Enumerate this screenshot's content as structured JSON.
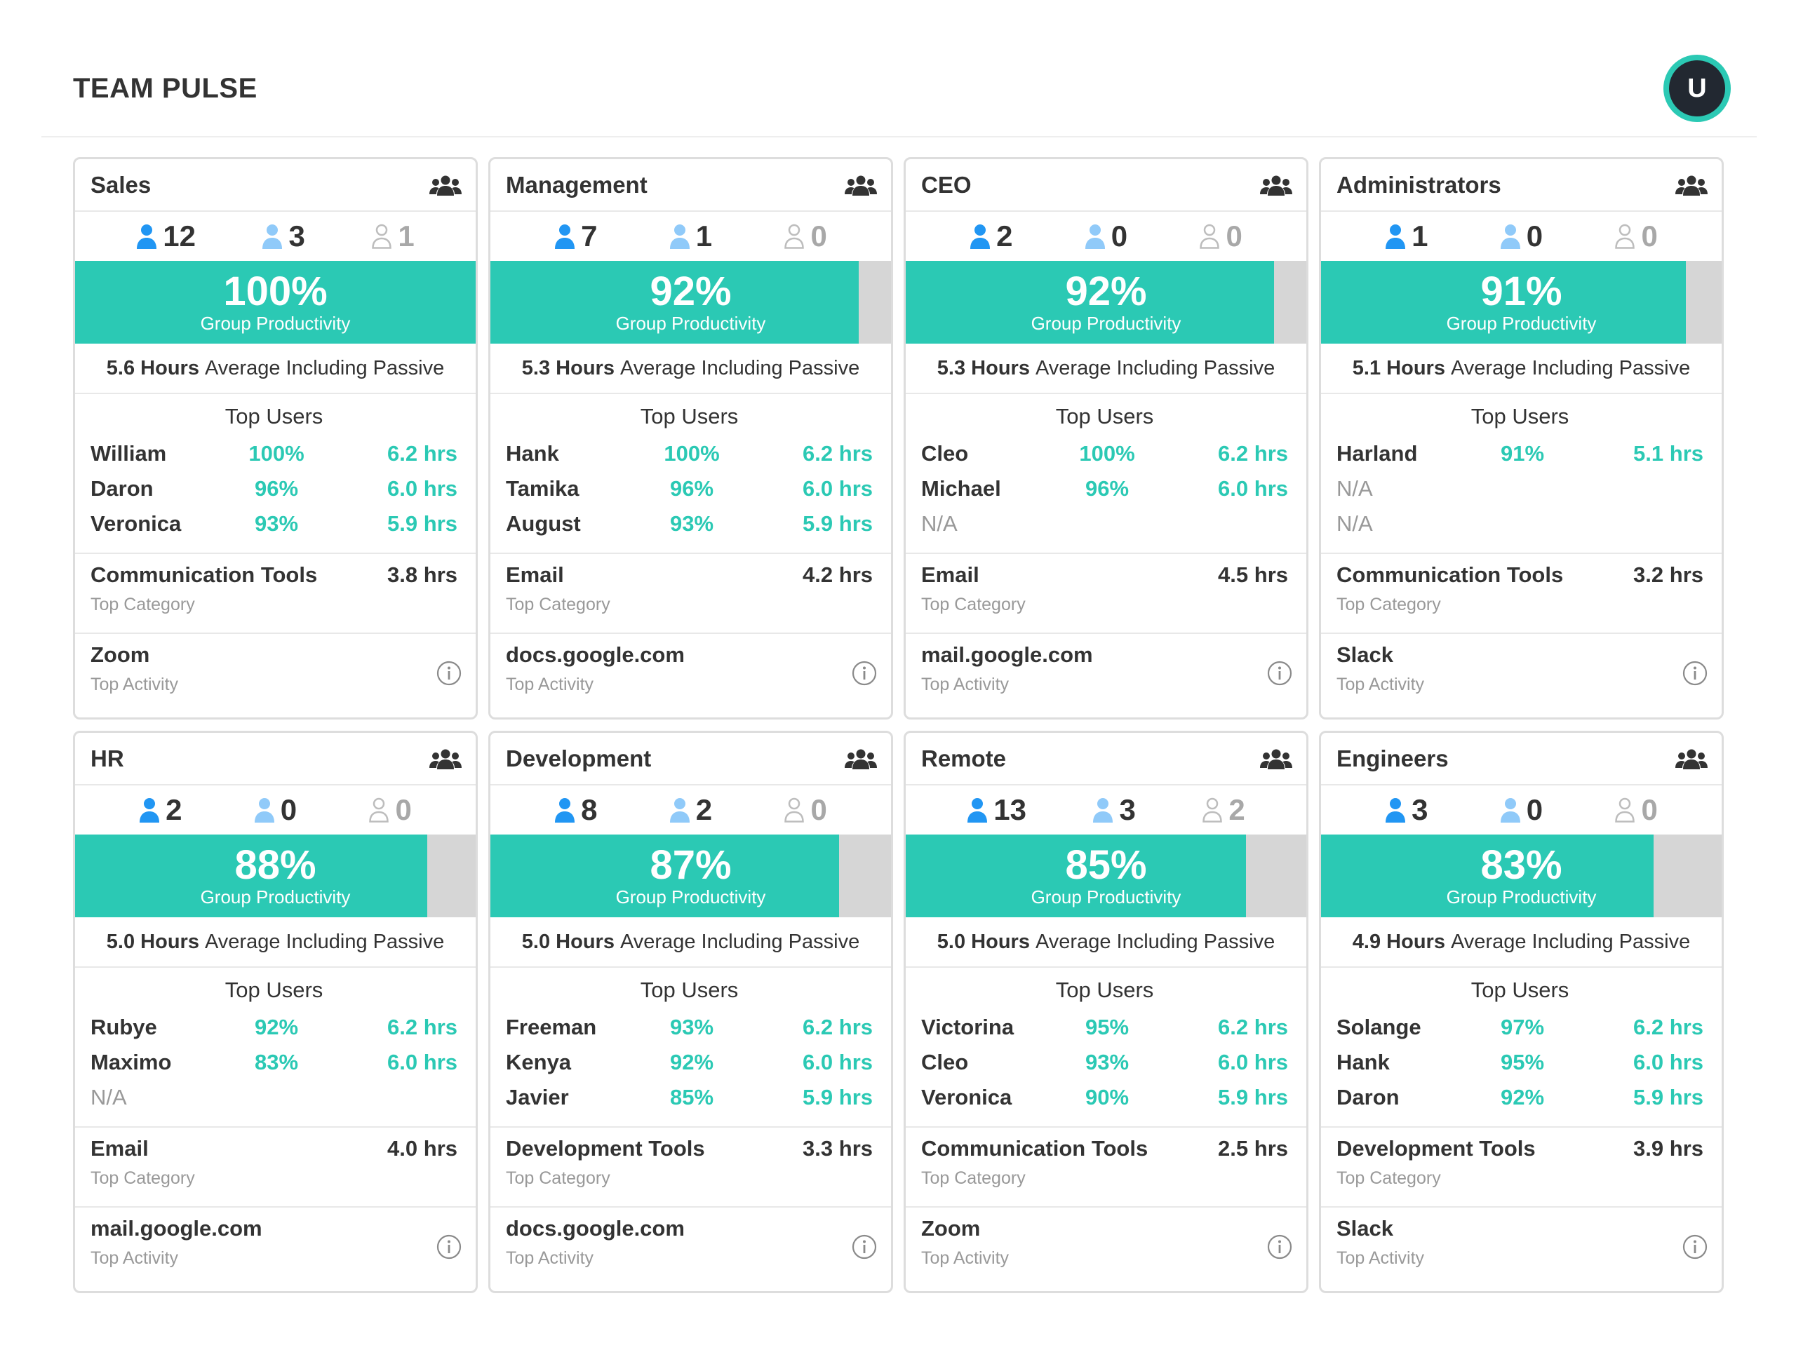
{
  "page": {
    "title": "TEAM PULSE",
    "avatar_initial": "U"
  },
  "labels": {
    "group_productivity": "Group Productivity",
    "average_suffix": "Average Including Passive",
    "top_users": "Top Users",
    "top_category": "Top Category",
    "top_activity": "Top Activity"
  },
  "colors": {
    "accent": "#2bc9b4",
    "bar_bg": "#d6d6d6",
    "active_icon": "#2196f3",
    "idle_icon": "#90caf9",
    "offline_icon": "#bdbdbd"
  },
  "icons": {
    "group": "group-icon",
    "active": "active-user-icon",
    "idle": "idle-user-icon",
    "offline": "offline-user-icon",
    "info": "info-icon"
  },
  "groups": [
    {
      "name": "Sales",
      "active": "12",
      "idle": "3",
      "offline": "1",
      "productivity": 100,
      "productivity_label": "100%",
      "hours": "5.6 Hours",
      "top_users": [
        {
          "name": "William",
          "pct": "100%",
          "hrs": "6.2 hrs"
        },
        {
          "name": "Daron",
          "pct": "96%",
          "hrs": "6.0 hrs"
        },
        {
          "name": "Veronica",
          "pct": "93%",
          "hrs": "5.9 hrs"
        }
      ],
      "top_category": {
        "name": "Communication Tools",
        "hrs": "3.8 hrs"
      },
      "top_activity": "Zoom"
    },
    {
      "name": "Management",
      "active": "7",
      "idle": "1",
      "offline": "0",
      "productivity": 92,
      "productivity_label": "92%",
      "hours": "5.3 Hours",
      "top_users": [
        {
          "name": "Hank",
          "pct": "100%",
          "hrs": "6.2 hrs"
        },
        {
          "name": "Tamika",
          "pct": "96%",
          "hrs": "6.0 hrs"
        },
        {
          "name": "August",
          "pct": "93%",
          "hrs": "5.9 hrs"
        }
      ],
      "top_category": {
        "name": "Email",
        "hrs": "4.2 hrs"
      },
      "top_activity": "docs.google.com"
    },
    {
      "name": "CEO",
      "active": "2",
      "idle": "0",
      "offline": "0",
      "productivity": 92,
      "productivity_label": "92%",
      "hours": "5.3 Hours",
      "top_users": [
        {
          "name": "Cleo",
          "pct": "100%",
          "hrs": "6.2 hrs"
        },
        {
          "name": "Michael",
          "pct": "96%",
          "hrs": "6.0 hrs"
        },
        {
          "name": "N/A",
          "pct": "",
          "hrs": ""
        }
      ],
      "top_category": {
        "name": "Email",
        "hrs": "4.5 hrs"
      },
      "top_activity": "mail.google.com"
    },
    {
      "name": "Administrators",
      "active": "1",
      "idle": "0",
      "offline": "0",
      "productivity": 91,
      "productivity_label": "91%",
      "hours": "5.1 Hours",
      "top_users": [
        {
          "name": "Harland",
          "pct": "91%",
          "hrs": "5.1 hrs"
        },
        {
          "name": "N/A",
          "pct": "",
          "hrs": ""
        },
        {
          "name": "N/A",
          "pct": "",
          "hrs": ""
        }
      ],
      "top_category": {
        "name": "Communication Tools",
        "hrs": "3.2 hrs"
      },
      "top_activity": "Slack"
    },
    {
      "name": "HR",
      "active": "2",
      "idle": "0",
      "offline": "0",
      "productivity": 88,
      "productivity_label": "88%",
      "hours": "5.0 Hours",
      "top_users": [
        {
          "name": "Rubye",
          "pct": "92%",
          "hrs": "6.2 hrs"
        },
        {
          "name": "Maximo",
          "pct": "83%",
          "hrs": "6.0 hrs"
        },
        {
          "name": "N/A",
          "pct": "",
          "hrs": ""
        }
      ],
      "top_category": {
        "name": "Email",
        "hrs": "4.0 hrs"
      },
      "top_activity": "mail.google.com"
    },
    {
      "name": "Development",
      "active": "8",
      "idle": "2",
      "offline": "0",
      "productivity": 87,
      "productivity_label": "87%",
      "hours": "5.0 Hours",
      "top_users": [
        {
          "name": "Freeman",
          "pct": "93%",
          "hrs": "6.2 hrs"
        },
        {
          "name": "Kenya",
          "pct": "92%",
          "hrs": "6.0 hrs"
        },
        {
          "name": "Javier",
          "pct": "85%",
          "hrs": "5.9 hrs"
        }
      ],
      "top_category": {
        "name": "Development Tools",
        "hrs": "3.3 hrs"
      },
      "top_activity": "docs.google.com"
    },
    {
      "name": "Remote",
      "active": "13",
      "idle": "3",
      "offline": "2",
      "productivity": 85,
      "productivity_label": "85%",
      "hours": "5.0 Hours",
      "top_users": [
        {
          "name": "Victorina",
          "pct": "95%",
          "hrs": "6.2 hrs"
        },
        {
          "name": "Cleo",
          "pct": "93%",
          "hrs": "6.0 hrs"
        },
        {
          "name": "Veronica",
          "pct": "90%",
          "hrs": "5.9 hrs"
        }
      ],
      "top_category": {
        "name": "Communication Tools",
        "hrs": "2.5 hrs"
      },
      "top_activity": "Zoom"
    },
    {
      "name": "Engineers",
      "active": "3",
      "idle": "0",
      "offline": "0",
      "productivity": 83,
      "productivity_label": "83%",
      "hours": "4.9 Hours",
      "top_users": [
        {
          "name": "Solange",
          "pct": "97%",
          "hrs": "6.2 hrs"
        },
        {
          "name": "Hank",
          "pct": "95%",
          "hrs": "6.0 hrs"
        },
        {
          "name": "Daron",
          "pct": "92%",
          "hrs": "5.9 hrs"
        }
      ],
      "top_category": {
        "name": "Development Tools",
        "hrs": "3.9 hrs"
      },
      "top_activity": "Slack"
    }
  ]
}
